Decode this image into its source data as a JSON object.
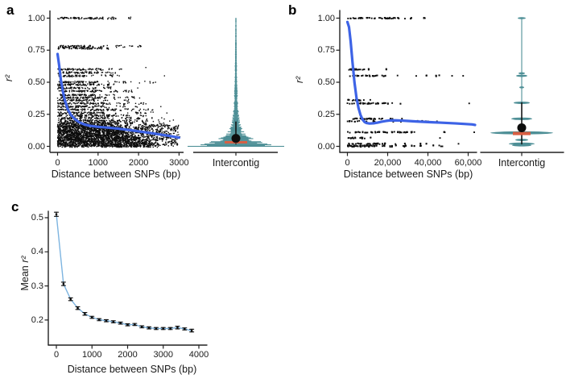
{
  "colors": {
    "background": "#ffffff",
    "axis": "#222222",
    "text": "#1a1a1a",
    "point_black": "#0d0d0d",
    "loess_blue": "#3d63e6",
    "line_lightblue": "#7db4e0",
    "violin_teal": "#4e8f96",
    "median_red": "#d95f43"
  },
  "chart_data": [
    {
      "id": "a",
      "panel_label": "a",
      "type": "scatter",
      "xlabel": "Distance between SNPs (bp)",
      "ylabel_prefix": "",
      "ylabel_symbol": "r²",
      "xlim": [
        0,
        3000
      ],
      "ylim": [
        0,
        1
      ],
      "grid": false,
      "xticks": {
        "values": [
          0,
          1000,
          2000,
          3000
        ],
        "labels": [
          "0",
          "1000",
          "2000",
          "3000"
        ]
      },
      "yticks": {
        "values": [
          1,
          0.75,
          0.5,
          0.25,
          0
        ],
        "labels": [
          "1.00",
          "0.75",
          "0.50",
          "0.25",
          "0.00"
        ]
      },
      "bands": [
        [
          1.0,
          1150,
          1800
        ],
        [
          0.78,
          780,
          2100
        ],
        [
          0.765,
          1060,
          1350
        ],
        [
          0.6,
          880,
          1750
        ],
        [
          0.575,
          1020,
          1450
        ],
        [
          0.55,
          700,
          1500
        ],
        [
          0.5,
          950,
          2450
        ],
        [
          0.48,
          1250,
          1600
        ],
        [
          0.455,
          800,
          1400
        ],
        [
          0.43,
          1100,
          1900
        ],
        [
          0.4,
          850,
          1500
        ],
        [
          0.38,
          1200,
          2100
        ],
        [
          0.36,
          900,
          1800
        ],
        [
          0.335,
          1300,
          2300
        ],
        [
          0.31,
          1000,
          2000
        ],
        [
          0.285,
          1350,
          2450
        ],
        [
          0.26,
          1100,
          2400
        ],
        [
          0.24,
          1400,
          2500
        ],
        [
          0.22,
          1200,
          2700
        ],
        [
          0.2,
          1500,
          2800
        ],
        [
          0.185,
          1300,
          2600
        ],
        [
          0.175,
          1450,
          2750
        ],
        [
          0.165,
          1350,
          2900
        ],
        [
          0.1575,
          1420,
          3000
        ],
        [
          0.15,
          1380,
          2950
        ],
        [
          0.1425,
          1500,
          3000
        ],
        [
          0.135,
          1460,
          2900
        ],
        [
          0.1275,
          1550,
          3000
        ],
        [
          0.12,
          1620,
          2950
        ],
        [
          0.1125,
          1580,
          3000
        ],
        [
          0.105,
          1700,
          3000
        ],
        [
          0.0975,
          1680,
          2950
        ],
        [
          0.09,
          1780,
          3000
        ],
        [
          0.0825,
          1850,
          3000
        ],
        [
          0.075,
          1820,
          2950
        ],
        [
          0.0675,
          1900,
          3000
        ],
        [
          0.06,
          1980,
          3000
        ],
        [
          0.0525,
          2050,
          2950
        ],
        [
          0.045,
          2100,
          3000
        ],
        [
          0.0375,
          2150,
          3000
        ],
        [
          0.03,
          2200,
          2950
        ],
        [
          0.0225,
          2250,
          3000
        ],
        [
          0.015,
          2300,
          3000
        ],
        [
          0.0075,
          2280,
          2950
        ],
        [
          0.0,
          2320,
          3000
        ]
      ],
      "outliers": [
        [
          2640,
          0.55
        ],
        [
          2180,
          0.615
        ],
        [
          2700,
          0.26
        ],
        [
          2860,
          0.205
        ],
        [
          2060,
          0.78
        ],
        [
          2420,
          0.5
        ],
        [
          1980,
          0.455
        ],
        [
          2550,
          0.31
        ],
        [
          2350,
          0.285
        ]
      ],
      "loess": [
        [
          0,
          0.72
        ],
        [
          40,
          0.63
        ],
        [
          80,
          0.52
        ],
        [
          130,
          0.43
        ],
        [
          180,
          0.36
        ],
        [
          250,
          0.29
        ],
        [
          330,
          0.245
        ],
        [
          420,
          0.215
        ],
        [
          520,
          0.19
        ],
        [
          650,
          0.172
        ],
        [
          800,
          0.16
        ],
        [
          1000,
          0.152
        ],
        [
          1250,
          0.146
        ],
        [
          1500,
          0.138
        ],
        [
          1750,
          0.128
        ],
        [
          2000,
          0.117
        ],
        [
          2250,
          0.106
        ],
        [
          2500,
          0.094
        ],
        [
          2750,
          0.082
        ],
        [
          3000,
          0.068
        ]
      ],
      "violin": {
        "label": "Intercontig",
        "style": "dense",
        "profile": [
          [
            0,
            50
          ],
          [
            0.01,
            41
          ],
          [
            0.02,
            34
          ],
          [
            0.03,
            28
          ],
          [
            0.04,
            23
          ],
          [
            0.05,
            20
          ],
          [
            0.06,
            17
          ],
          [
            0.07,
            14
          ],
          [
            0.08,
            12
          ],
          [
            0.09,
            10
          ],
          [
            0.1,
            9
          ],
          [
            0.12,
            7.5
          ],
          [
            0.14,
            6
          ],
          [
            0.16,
            5
          ],
          [
            0.18,
            4.5
          ],
          [
            0.2,
            4
          ],
          [
            0.25,
            3
          ],
          [
            0.3,
            2.4
          ],
          [
            0.35,
            2
          ],
          [
            0.4,
            1.8
          ],
          [
            0.5,
            1.4
          ],
          [
            0.6,
            1.1
          ],
          [
            0.7,
            0.9
          ],
          [
            0.8,
            0.8
          ],
          [
            0.9,
            0.7
          ],
          [
            1.0,
            0.6
          ]
        ],
        "mean_dot": 0.062,
        "median_band": 0.032,
        "whisker": [
          0.02,
          0.19
        ],
        "spike": [
          0,
          1.0
        ]
      }
    },
    {
      "id": "b",
      "panel_label": "b",
      "type": "scatter",
      "xlabel": "Distance between SNPs (bp)",
      "ylabel_prefix": "",
      "ylabel_symbol": "r²",
      "xlim": [
        0,
        68000
      ],
      "ylim": [
        0,
        1
      ],
      "grid": false,
      "xticks": {
        "values": [
          0,
          20000,
          40000,
          60000
        ],
        "labels": [
          "0",
          "20,000",
          "40,000",
          "60,000"
        ]
      },
      "yticks": {
        "values": [
          1,
          0.75,
          0.5,
          0.25,
          0
        ],
        "labels": [
          "1.00",
          "0.75",
          "0.50",
          "0.25",
          "0.00"
        ]
      },
      "bands": [
        [
          1.0,
          26000,
          39000
        ],
        [
          0.6,
          7500,
          21000
        ],
        [
          0.55,
          14500,
          46000
        ],
        [
          0.36,
          9000,
          12000
        ],
        [
          0.335,
          19500,
          30000
        ],
        [
          0.215,
          17500,
          30000
        ],
        [
          0.195,
          6000,
          42000
        ],
        [
          0.11,
          29500,
          49000
        ],
        [
          0.065,
          8500,
          15500
        ],
        [
          0.02,
          16500,
          40000
        ],
        [
          0.005,
          17500,
          52000
        ],
        [
          0.0,
          9000,
          30000
        ]
      ],
      "outliers": [
        [
          60500,
          0.335
        ],
        [
          65800,
          0.335
        ],
        [
          52000,
          0.55
        ],
        [
          57500,
          0.55
        ],
        [
          63000,
          0.11
        ],
        [
          64800,
          0.11
        ],
        [
          46000,
          0.065
        ],
        [
          55200,
          0.02
        ],
        [
          65500,
          0.005
        ],
        [
          46500,
          0.0
        ],
        [
          47200,
          0.0
        ],
        [
          38500,
          1.0
        ],
        [
          40000,
          0.195
        ],
        [
          44500,
          0.195
        ]
      ],
      "loess": [
        [
          0,
          0.97
        ],
        [
          800,
          0.93
        ],
        [
          1600,
          0.82
        ],
        [
          2500,
          0.66
        ],
        [
          3500,
          0.5
        ],
        [
          4500,
          0.38
        ],
        [
          5500,
          0.3
        ],
        [
          6500,
          0.245
        ],
        [
          7500,
          0.21
        ],
        [
          8500,
          0.19
        ],
        [
          9500,
          0.182
        ],
        [
          11000,
          0.178
        ],
        [
          13000,
          0.18
        ],
        [
          15000,
          0.185
        ],
        [
          17000,
          0.192
        ],
        [
          19000,
          0.198
        ],
        [
          21000,
          0.202
        ],
        [
          24000,
          0.203
        ],
        [
          27000,
          0.201
        ],
        [
          30000,
          0.198
        ],
        [
          34000,
          0.194
        ],
        [
          38000,
          0.191
        ],
        [
          42000,
          0.188
        ],
        [
          46000,
          0.185
        ],
        [
          50000,
          0.182
        ],
        [
          54000,
          0.179
        ],
        [
          58000,
          0.175
        ],
        [
          62000,
          0.171
        ],
        [
          66000,
          0.167
        ]
      ],
      "violin": {
        "label": "Intercontig",
        "style": "sparse",
        "slivers": [
          [
            1.0,
            5,
            1.4
          ],
          [
            0.57,
            4,
            1.2
          ],
          [
            0.55,
            7,
            1.6
          ],
          [
            0.46,
            3,
            1.2
          ],
          [
            0.34,
            10,
            1.8
          ],
          [
            0.215,
            13,
            2
          ],
          [
            0.105,
            39,
            2.6
          ],
          [
            0.05,
            8,
            1.6
          ],
          [
            0.02,
            16,
            2
          ],
          [
            0.008,
            12,
            1.6
          ]
        ],
        "mean_dot": 0.145,
        "median_band": 0.1,
        "whisker": [
          0.02,
          0.34
        ],
        "spike": [
          0.008,
          1.0
        ]
      }
    },
    {
      "id": "c",
      "panel_label": "c",
      "type": "line",
      "xlabel": "Distance between SNPs (bp)",
      "ylabel_prefix": "Mean ",
      "ylabel_symbol": "r²",
      "xlim": [
        0,
        4000
      ],
      "ylim": [
        0.13,
        0.53
      ],
      "grid": false,
      "xticks": {
        "values": [
          0,
          1000,
          2000,
          3000,
          4000
        ],
        "labels": [
          "0",
          "1000",
          "2000",
          "3000",
          "4000"
        ]
      },
      "yticks": {
        "values": [
          0.5,
          0.4,
          0.3,
          0.2
        ],
        "labels": [
          "0.5",
          "0.4",
          "0.3",
          "0.2"
        ]
      },
      "x": [
        0,
        200,
        400,
        600,
        800,
        1000,
        1200,
        1400,
        1600,
        1800,
        2000,
        2200,
        2400,
        2600,
        2800,
        3000,
        3200,
        3400,
        3600,
        3800
      ],
      "y": [
        0.51,
        0.306,
        0.261,
        0.235,
        0.218,
        0.208,
        0.201,
        0.198,
        0.195,
        0.191,
        0.186,
        0.187,
        0.18,
        0.177,
        0.175,
        0.175,
        0.175,
        0.178,
        0.174,
        0.169
      ],
      "yerr": [
        0.006,
        0.005,
        0.004,
        0.004,
        0.004,
        0.003,
        0.003,
        0.003,
        0.003,
        0.003,
        0.003,
        0.003,
        0.003,
        0.003,
        0.003,
        0.003,
        0.003,
        0.004,
        0.003,
        0.004
      ]
    }
  ]
}
